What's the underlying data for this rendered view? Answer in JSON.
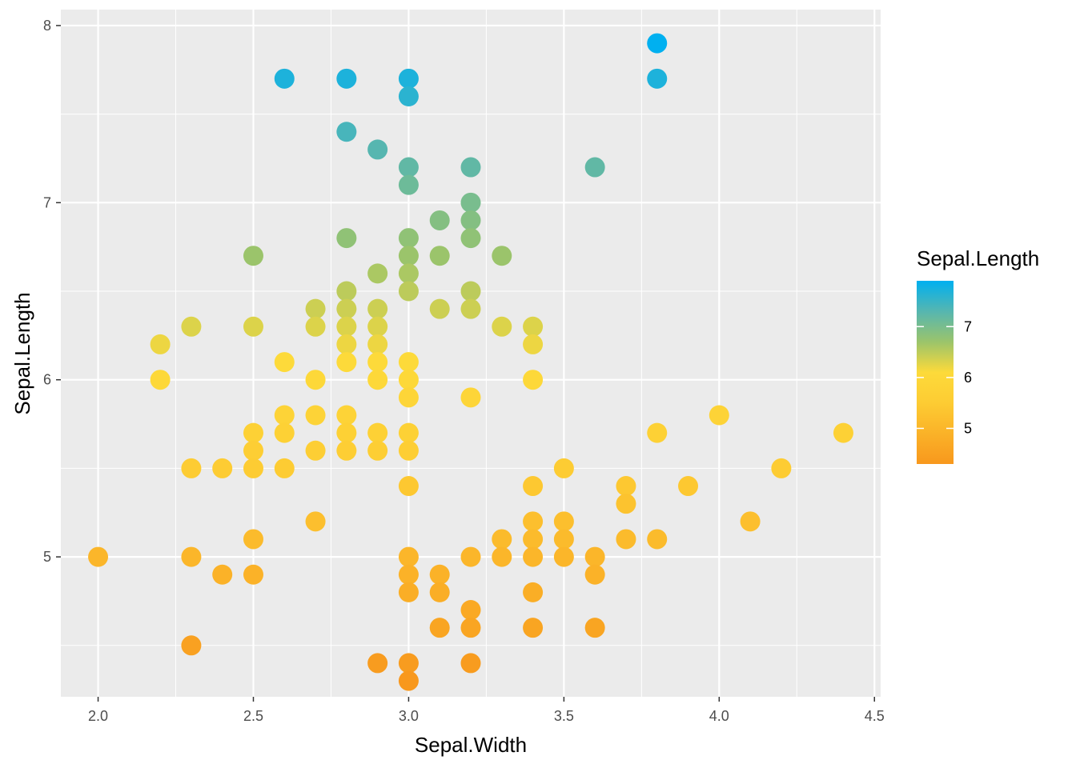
{
  "chart_data": {
    "type": "scatter",
    "xlabel": "Sepal.Width",
    "ylabel": "Sepal.Length",
    "xlim": [
      1.88,
      4.52
    ],
    "ylim": [
      4.21,
      8.09
    ],
    "x_ticks": [
      "2.0",
      "2.5",
      "3.0",
      "3.5",
      "4.0",
      "4.5"
    ],
    "y_ticks": [
      "5",
      "6",
      "7",
      "8"
    ],
    "grid": true,
    "legend": {
      "title": "Sepal.Length",
      "placement": "right",
      "min": 4.3,
      "max": 7.9,
      "ticks": [
        "5",
        "6",
        "7"
      ],
      "color_stops": [
        {
          "value": 4.3,
          "color": "#F8981D"
        },
        {
          "value": 5.5,
          "color": "#FDCC33"
        },
        {
          "value": 6.1,
          "color": "#FDDA3A"
        },
        {
          "value": 6.7,
          "color": "#9BC46B"
        },
        {
          "value": 7.3,
          "color": "#56B6B0"
        },
        {
          "value": 7.9,
          "color": "#00B0F0"
        }
      ]
    },
    "points": [
      [
        2.0,
        5.0
      ],
      [
        2.2,
        6.2
      ],
      [
        2.2,
        6.0
      ],
      [
        2.3,
        6.3
      ],
      [
        2.3,
        5.5
      ],
      [
        2.3,
        5.0
      ],
      [
        2.3,
        4.5
      ],
      [
        2.4,
        5.5
      ],
      [
        2.4,
        4.9
      ],
      [
        2.5,
        6.7
      ],
      [
        2.5,
        6.3
      ],
      [
        2.5,
        5.7
      ],
      [
        2.5,
        5.6
      ],
      [
        2.5,
        5.5
      ],
      [
        2.5,
        5.1
      ],
      [
        2.5,
        4.9
      ],
      [
        2.6,
        7.7
      ],
      [
        2.6,
        6.1
      ],
      [
        2.6,
        5.8
      ],
      [
        2.6,
        5.7
      ],
      [
        2.6,
        5.5
      ],
      [
        2.7,
        6.4
      ],
      [
        2.7,
        6.3
      ],
      [
        2.7,
        6.0
      ],
      [
        2.7,
        5.8
      ],
      [
        2.7,
        5.6
      ],
      [
        2.7,
        5.2
      ],
      [
        2.8,
        7.7
      ],
      [
        2.8,
        7.4
      ],
      [
        2.8,
        6.8
      ],
      [
        2.8,
        6.5
      ],
      [
        2.8,
        6.4
      ],
      [
        2.8,
        6.3
      ],
      [
        2.8,
        6.2
      ],
      [
        2.8,
        6.1
      ],
      [
        2.8,
        5.8
      ],
      [
        2.8,
        5.7
      ],
      [
        2.8,
        5.6
      ],
      [
        2.9,
        7.3
      ],
      [
        2.9,
        6.6
      ],
      [
        2.9,
        6.4
      ],
      [
        2.9,
        6.3
      ],
      [
        2.9,
        6.2
      ],
      [
        2.9,
        6.1
      ],
      [
        2.9,
        6.0
      ],
      [
        2.9,
        5.7
      ],
      [
        2.9,
        5.6
      ],
      [
        2.9,
        4.4
      ],
      [
        3.0,
        7.7
      ],
      [
        3.0,
        7.6
      ],
      [
        3.0,
        7.2
      ],
      [
        3.0,
        7.1
      ],
      [
        3.0,
        6.8
      ],
      [
        3.0,
        6.7
      ],
      [
        3.0,
        6.6
      ],
      [
        3.0,
        6.5
      ],
      [
        3.0,
        6.1
      ],
      [
        3.0,
        6.0
      ],
      [
        3.0,
        5.9
      ],
      [
        3.0,
        5.7
      ],
      [
        3.0,
        5.6
      ],
      [
        3.0,
        5.4
      ],
      [
        3.0,
        5.0
      ],
      [
        3.0,
        4.9
      ],
      [
        3.0,
        4.8
      ],
      [
        3.0,
        4.4
      ],
      [
        3.0,
        4.3
      ],
      [
        3.1,
        6.9
      ],
      [
        3.1,
        6.7
      ],
      [
        3.1,
        6.4
      ],
      [
        3.1,
        4.9
      ],
      [
        3.1,
        4.8
      ],
      [
        3.1,
        4.6
      ],
      [
        3.2,
        7.2
      ],
      [
        3.2,
        7.0
      ],
      [
        3.2,
        6.9
      ],
      [
        3.2,
        6.8
      ],
      [
        3.2,
        6.5
      ],
      [
        3.2,
        6.4
      ],
      [
        3.2,
        5.9
      ],
      [
        3.2,
        5.0
      ],
      [
        3.2,
        4.7
      ],
      [
        3.2,
        4.6
      ],
      [
        3.2,
        4.4
      ],
      [
        3.3,
        6.7
      ],
      [
        3.3,
        6.3
      ],
      [
        3.3,
        5.1
      ],
      [
        3.3,
        5.0
      ],
      [
        3.4,
        6.3
      ],
      [
        3.4,
        6.2
      ],
      [
        3.4,
        6.0
      ],
      [
        3.4,
        5.4
      ],
      [
        3.4,
        5.2
      ],
      [
        3.4,
        5.1
      ],
      [
        3.4,
        5.0
      ],
      [
        3.4,
        4.8
      ],
      [
        3.4,
        4.6
      ],
      [
        3.5,
        5.5
      ],
      [
        3.5,
        5.2
      ],
      [
        3.5,
        5.1
      ],
      [
        3.5,
        5.0
      ],
      [
        3.6,
        7.2
      ],
      [
        3.6,
        5.0
      ],
      [
        3.6,
        4.9
      ],
      [
        3.6,
        4.6
      ],
      [
        3.7,
        5.4
      ],
      [
        3.7,
        5.3
      ],
      [
        3.7,
        5.1
      ],
      [
        3.8,
        7.9
      ],
      [
        3.8,
        7.7
      ],
      [
        3.8,
        5.7
      ],
      [
        3.8,
        5.1
      ],
      [
        3.9,
        5.4
      ],
      [
        4.0,
        5.8
      ],
      [
        4.1,
        5.2
      ],
      [
        4.2,
        5.5
      ],
      [
        4.4,
        5.7
      ]
    ]
  }
}
